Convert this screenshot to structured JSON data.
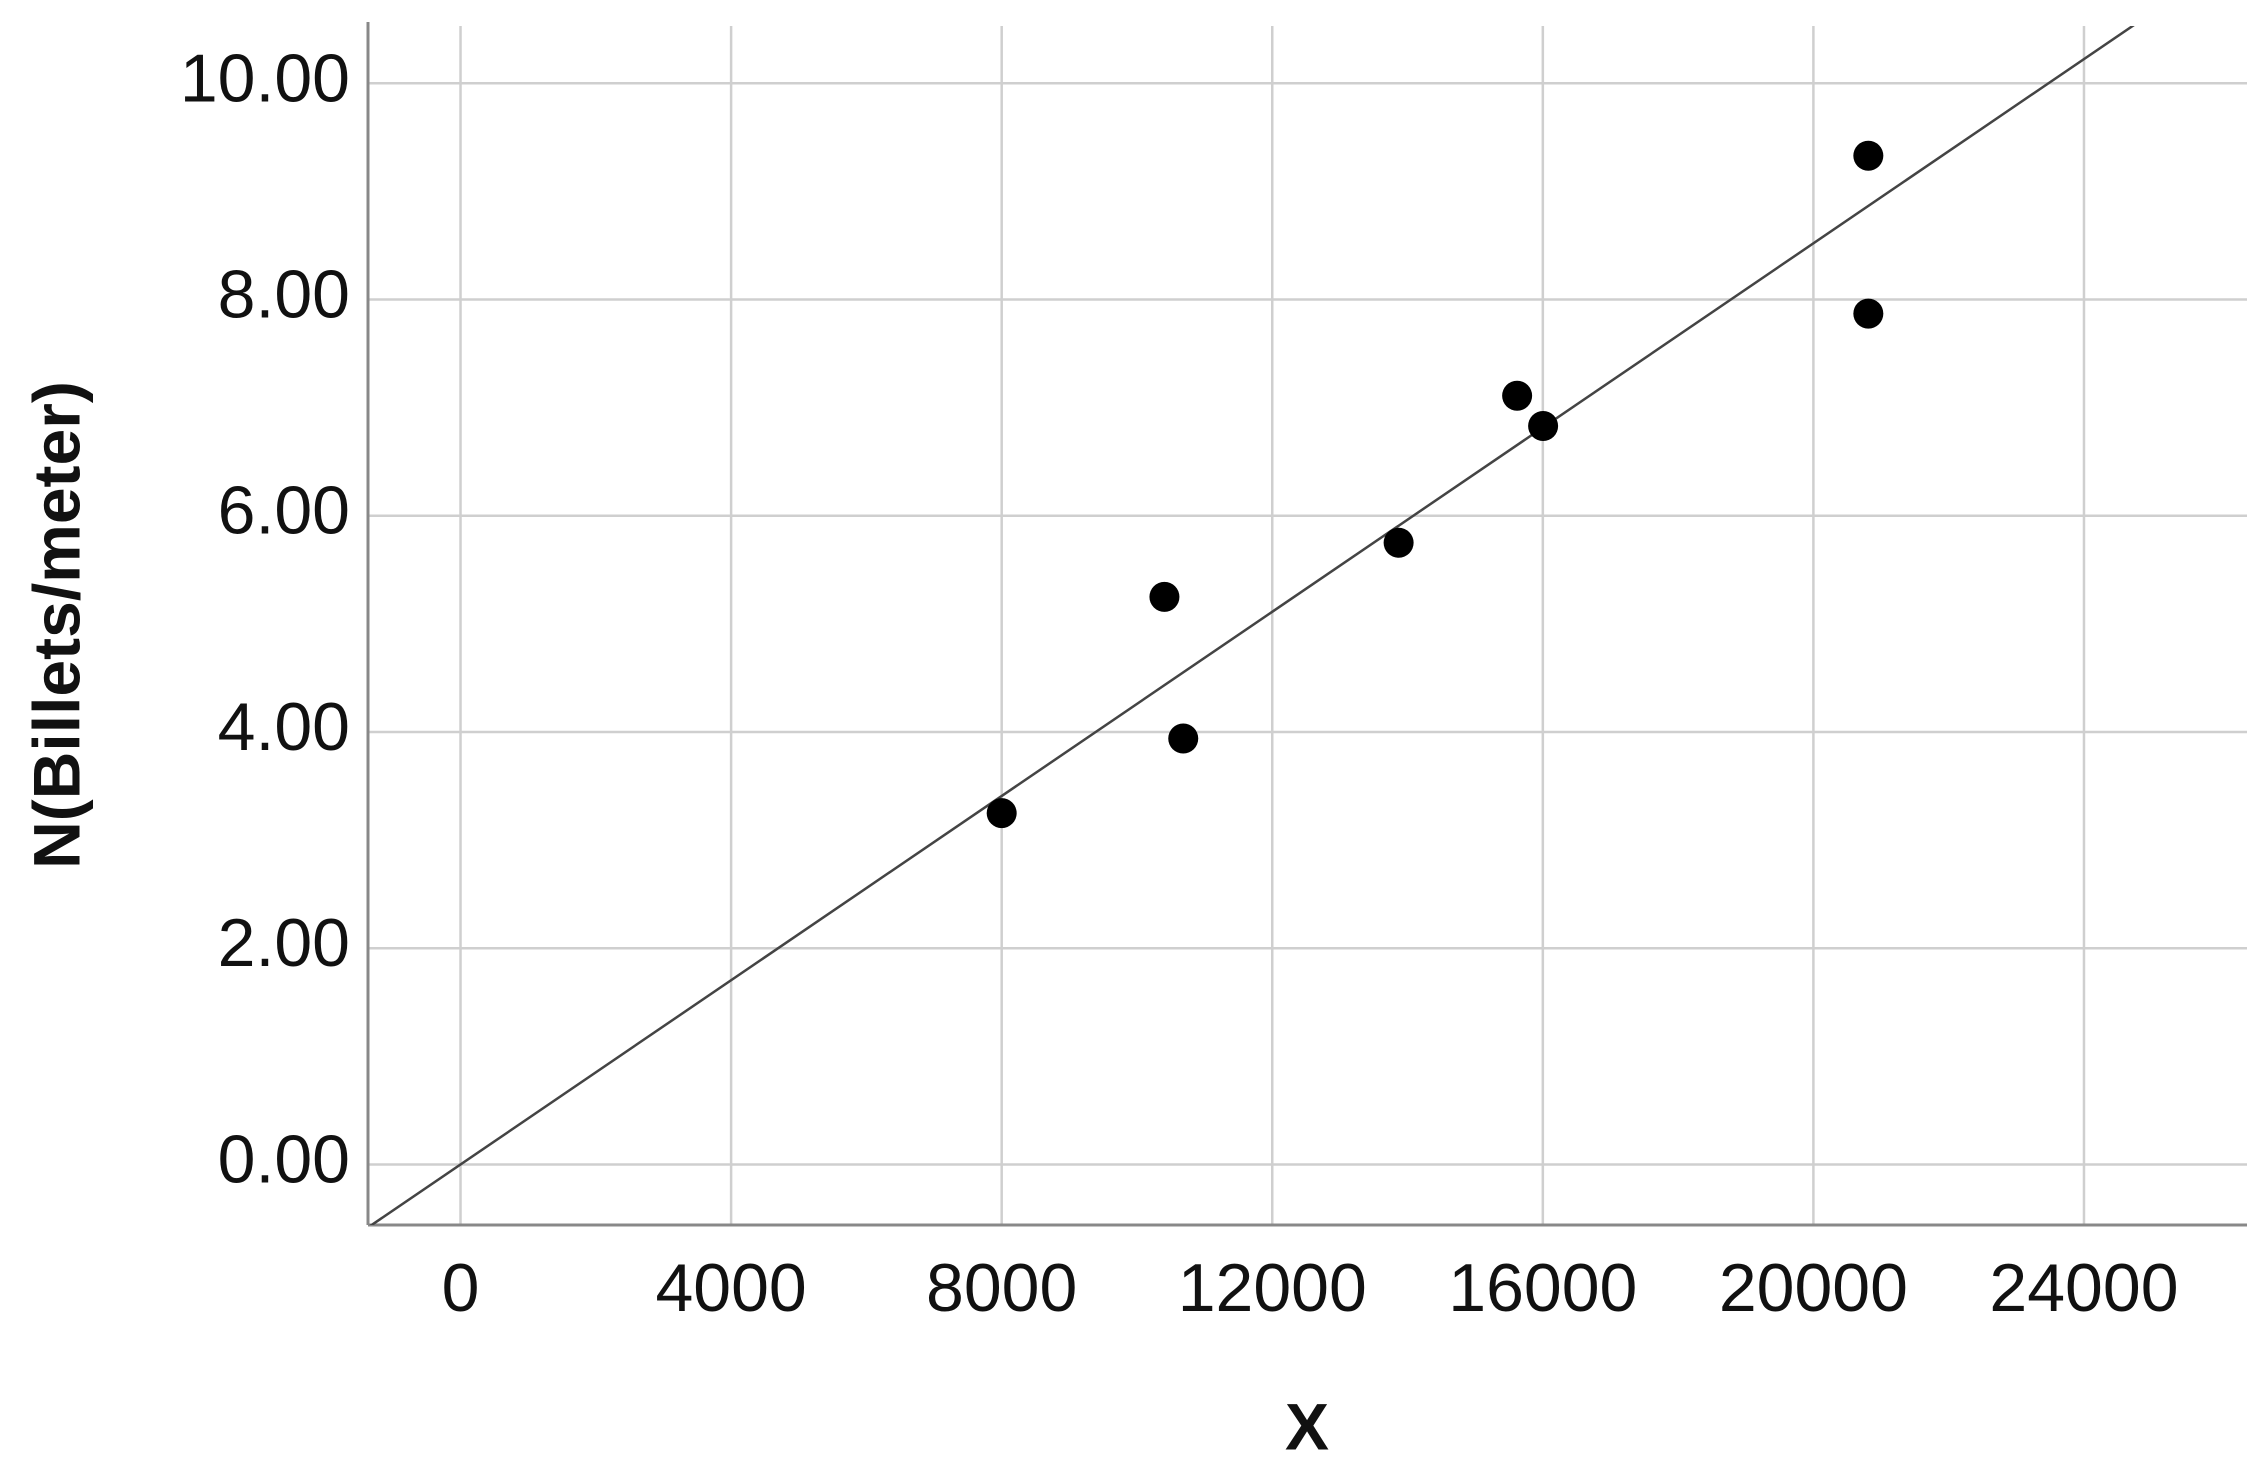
{
  "chart_data": {
    "type": "scatter",
    "x_label": "X",
    "y_label": "N(Billets/meter)",
    "x": [
      8000,
      10406,
      10684,
      13868,
      15620,
      16004,
      20812,
      20812
    ],
    "values": [
      3.25,
      5.25,
      3.94,
      5.75,
      7.11,
      6.83,
      9.33,
      7.87
    ],
    "color": "#000000",
    "fit_line": {
      "slope": 0.000426,
      "intercept": 0,
      "color": "#444444"
    },
    "xlim": [
      -1368,
      26410
    ],
    "ylim": [
      -0.56,
      10.53
    ],
    "xticks": [
      0,
      4000,
      8000,
      12000,
      16000,
      20000,
      24000
    ],
    "yticks": [
      {
        "value": 0,
        "label": "0.00"
      },
      {
        "value": 2,
        "label": "2.00"
      },
      {
        "value": 4,
        "label": "4.00"
      },
      {
        "value": 6,
        "label": "6.00"
      },
      {
        "value": 8,
        "label": "8.00"
      },
      {
        "value": 10,
        "label": "10.00"
      }
    ],
    "grid": true
  }
}
